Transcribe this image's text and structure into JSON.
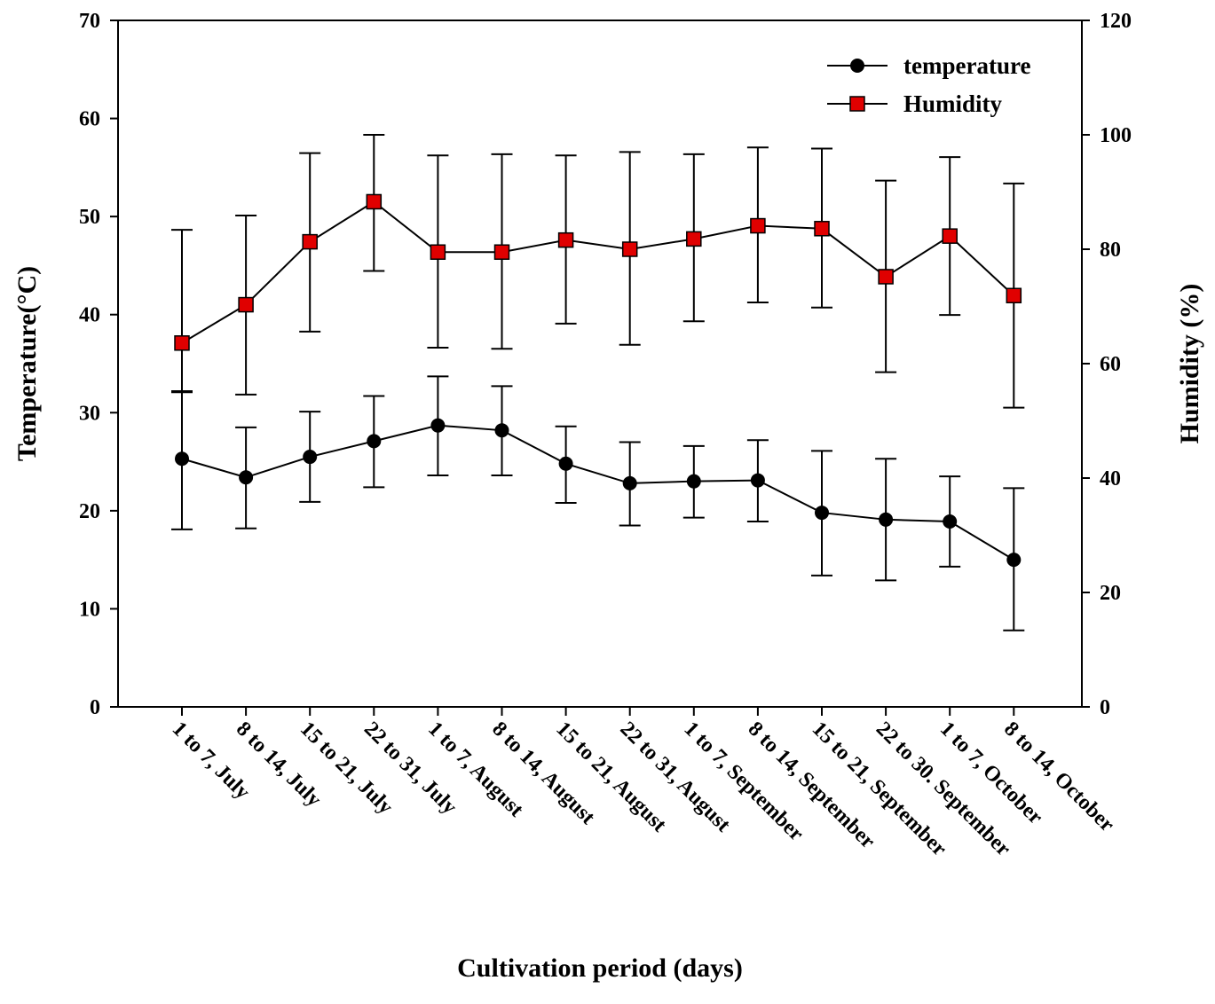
{
  "chart_data": {
    "type": "line",
    "categories": [
      "1 to 7, July",
      "8 to 14, July",
      "15 to 21, July",
      "22 to 31, July",
      "1 to 7, August",
      "8 to 14, August",
      "15 to 21, August",
      "22 to 31, August",
      "1 to 7, September",
      "8 to 14, September",
      "15 to 21, September",
      "22 to 30. September",
      "1 to 7, October",
      "8 to 14, October"
    ],
    "xlabel": "Cultivation period (days)",
    "ylabel_left": "Temperature(°C)",
    "ylabel_right": "Humidity (%)",
    "ylim_left": [
      0,
      70
    ],
    "ylim_right": [
      0,
      120
    ],
    "yticks_left": [
      "0",
      "10",
      "20",
      "30",
      "40",
      "50",
      "60",
      "70"
    ],
    "yticks_right": [
      "0",
      "20",
      "40",
      "60",
      "80",
      "100",
      "120"
    ],
    "legend_position": "top-right",
    "grid": false,
    "series": [
      {
        "name": "temperature",
        "axis": "left",
        "marker": "circle",
        "color": "#000000",
        "values": [
          25.3,
          23.4,
          25.5,
          27.1,
          28.7,
          28.2,
          24.8,
          22.8,
          23.0,
          23.1,
          19.8,
          19.1,
          18.9,
          15.0
        ],
        "error_upper": [
          32.2,
          28.5,
          30.1,
          31.7,
          33.7,
          32.7,
          28.6,
          27.0,
          26.6,
          27.2,
          26.1,
          25.3,
          23.5,
          22.3
        ],
        "error_lower": [
          18.1,
          18.2,
          20.9,
          22.4,
          23.6,
          23.6,
          20.8,
          18.5,
          19.3,
          18.9,
          13.4,
          12.9,
          14.3,
          7.8
        ]
      },
      {
        "name": "Humidity",
        "axis": "right",
        "marker": "square",
        "color": "#e00000",
        "values": [
          63.6,
          70.3,
          81.3,
          88.3,
          79.5,
          79.5,
          81.6,
          80.0,
          81.8,
          84.1,
          83.6,
          75.2,
          82.3,
          71.9
        ],
        "error_upper": [
          83.4,
          85.9,
          96.8,
          100.0,
          96.4,
          96.6,
          96.4,
          97.0,
          96.6,
          97.8,
          97.6,
          92.0,
          96.1,
          91.5
        ],
        "error_lower": [
          55.0,
          54.6,
          65.6,
          76.2,
          62.8,
          62.6,
          67.0,
          63.3,
          67.4,
          70.7,
          69.8,
          58.5,
          68.5,
          52.3
        ]
      }
    ]
  }
}
